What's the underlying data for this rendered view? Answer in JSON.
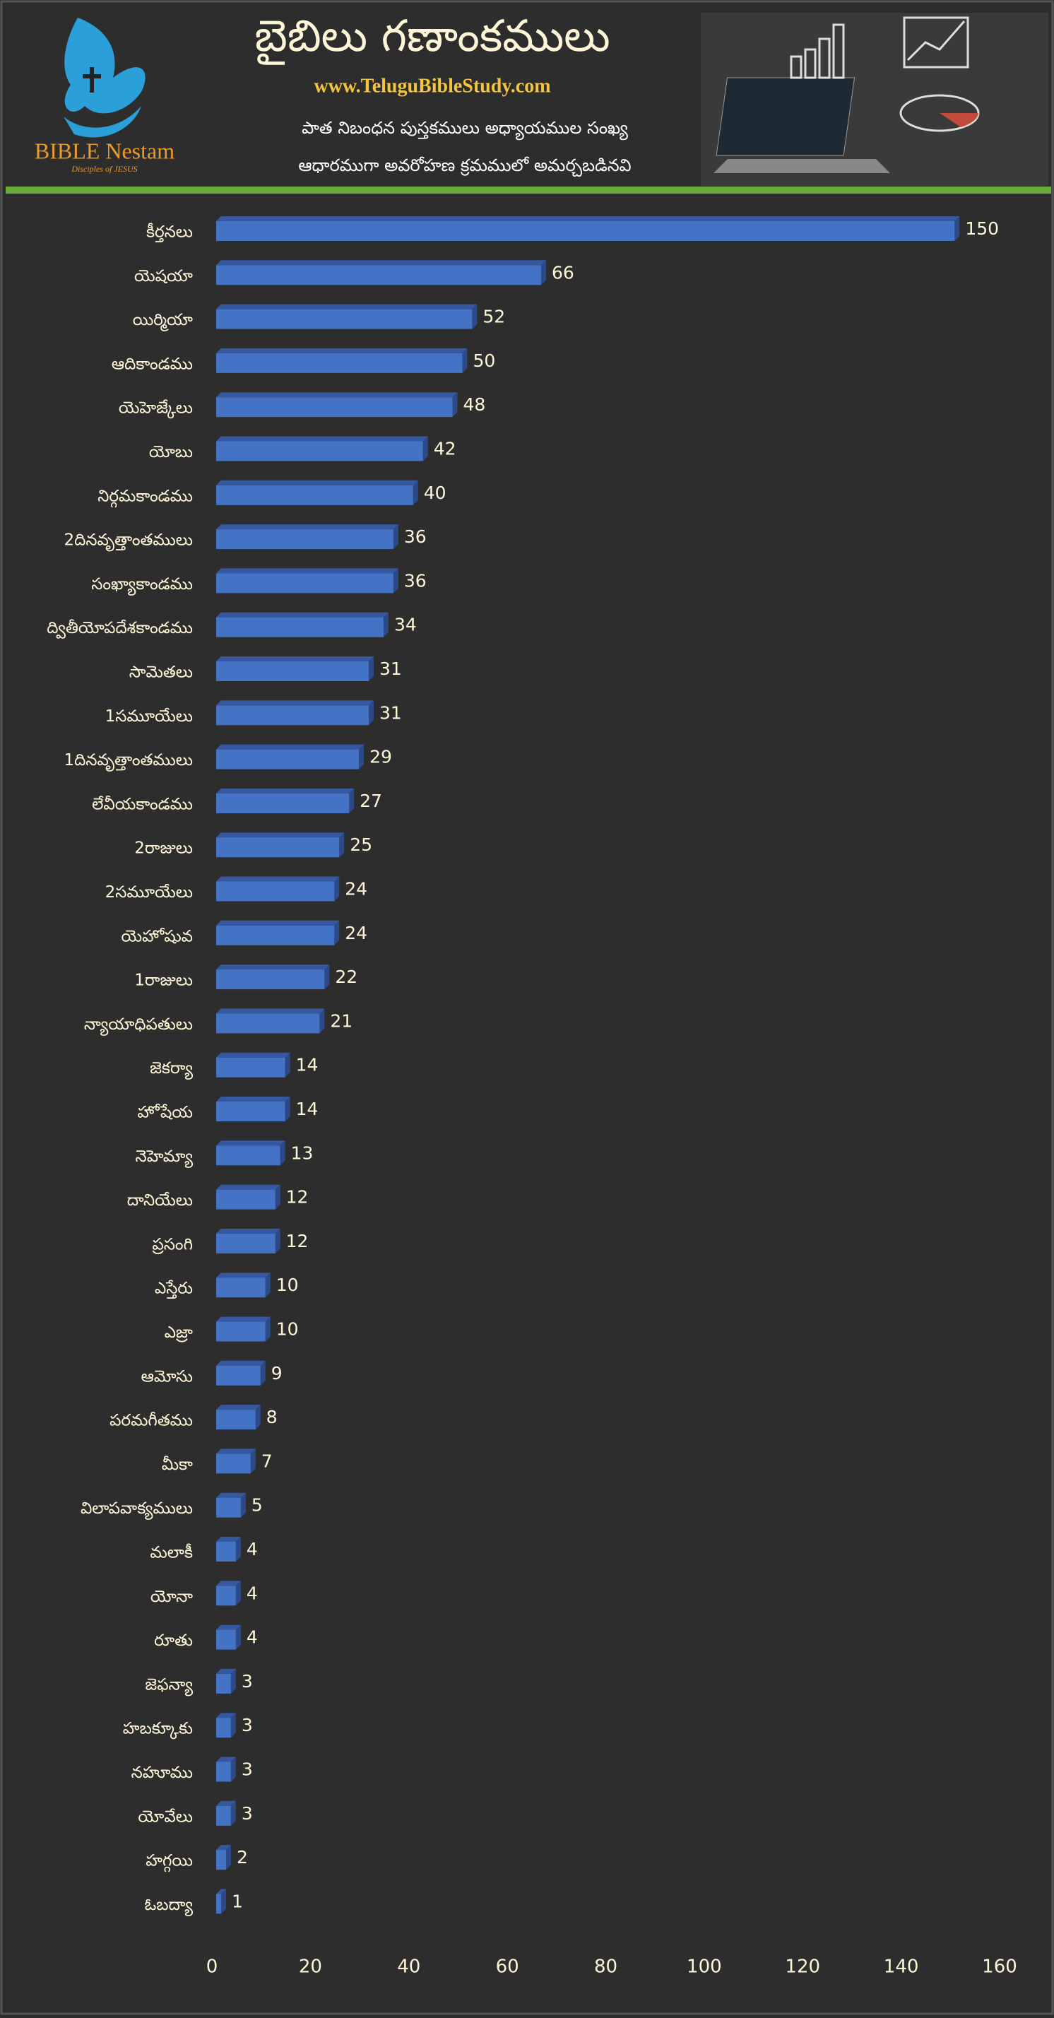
{
  "header": {
    "title": "బైబిలు గణాంకములు",
    "website": "www.TeluguBibleStudy.com",
    "subtitle_lines": [
      "పాత నిబంధన పుస్తకములు అధ్యాయముల సంఖ్య",
      "ఆధారముగా అవరోహణ క్రమములో అమర్చబడినవి"
    ],
    "logo_name": "BIBLE Nestam",
    "logo_tagline": "Disciples of JESUS"
  },
  "chart_data": {
    "type": "bar",
    "orientation": "horizontal",
    "color": "#4472c4",
    "categories": [
      "కీర్తనలు",
      "యెషయా",
      "యిర్మియా",
      "ఆదికాండము",
      "యెహెజ్కేలు",
      "యోబు",
      "నిర్గమకాండము",
      "2దినవృత్తాంతములు",
      "సంఖ్యాకాండము",
      "ద్వితీయోపదేశకాండము",
      "సామెతలు",
      "1సమూయేలు",
      "1దినవృత్తాంతములు",
      "లేవీయకాండము",
      "2రాజులు",
      "2సమూయేలు",
      "యెహోషువ",
      "1రాజులు",
      "న్యాయాధిపతులు",
      "జెకర్యా",
      "హోషేయ",
      "నెహెమ్యా",
      "దానియేలు",
      "ప్రసంగి",
      "ఎస్తేరు",
      "ఎజ్రా",
      "ఆమోసు",
      "పరమగీతము",
      "మీకా",
      "విలాపవాక్యములు",
      "మలాకీ",
      "యోనా",
      "రూతు",
      "జెఫన్యా",
      "హబక్కూకు",
      "నహూము",
      "యోవేలు",
      "హగ్గయి",
      "ఓబద్యా"
    ],
    "values": [
      150,
      66,
      52,
      50,
      48,
      42,
      40,
      36,
      36,
      34,
      31,
      31,
      29,
      27,
      25,
      24,
      24,
      22,
      21,
      14,
      14,
      13,
      12,
      12,
      10,
      10,
      9,
      8,
      7,
      5,
      4,
      4,
      4,
      3,
      3,
      3,
      3,
      2,
      1
    ],
    "xlim": [
      0,
      160
    ],
    "xticks": [
      0,
      20,
      40,
      60,
      80,
      100,
      120,
      140,
      160
    ],
    "grid": false
  }
}
